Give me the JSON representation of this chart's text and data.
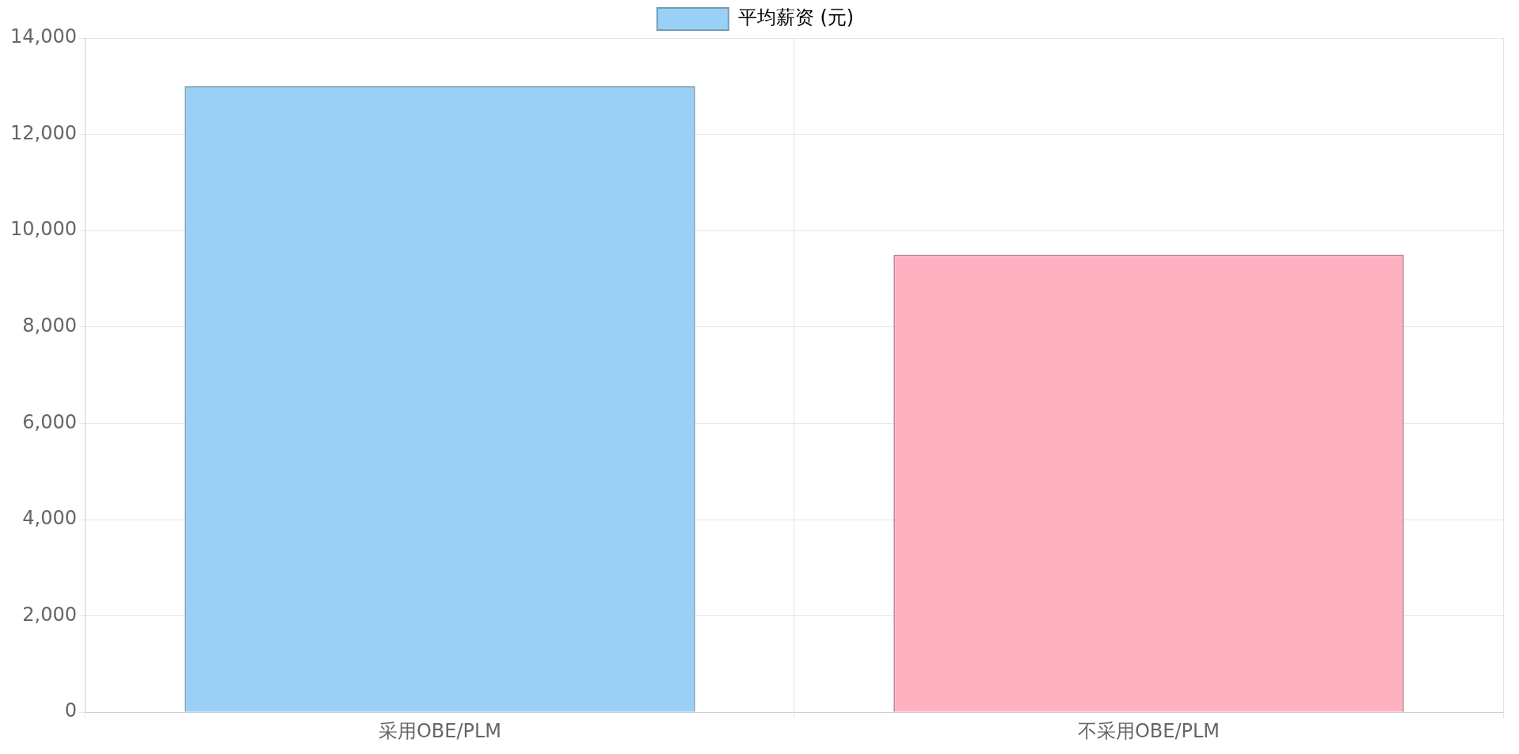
{
  "chart_data": {
    "type": "bar",
    "categories": [
      "采用OBE/PLM",
      "不采用OBE/PLM"
    ],
    "series": [
      {
        "name": "平均薪资 (元)",
        "colors": [
          "#9ad0f5",
          "#ffb1c1"
        ],
        "values": [
          13000,
          9500
        ]
      }
    ],
    "ylim": [
      0,
      14000
    ],
    "yticks": [
      {
        "value": 0,
        "label": "0"
      },
      {
        "value": 2000,
        "label": "2,000"
      },
      {
        "value": 4000,
        "label": "4,000"
      },
      {
        "value": 6000,
        "label": "6,000"
      },
      {
        "value": 8000,
        "label": "8,000"
      },
      {
        "value": 10000,
        "label": "10,000"
      },
      {
        "value": 12000,
        "label": "12,000"
      },
      {
        "value": 14000,
        "label": "14,000"
      }
    ],
    "grid": true,
    "legend": "top"
  }
}
